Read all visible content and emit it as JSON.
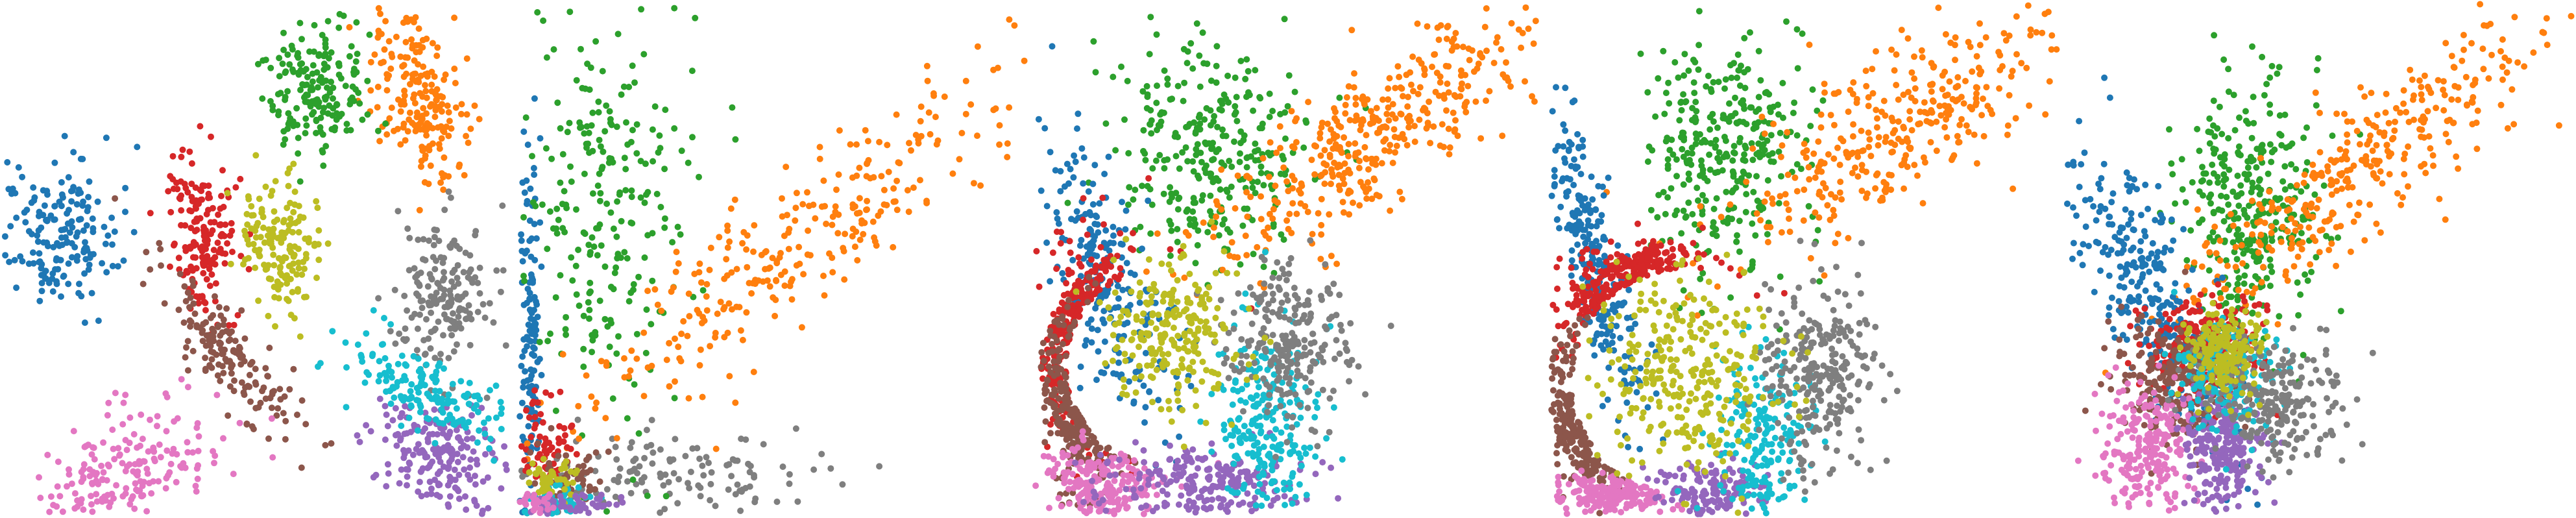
{
  "chart_data": [
    {
      "type": "scatter",
      "axes": "hidden",
      "grid": false,
      "legend": "none",
      "palette": [
        "#1f77b4",
        "#ff7f0e",
        "#2ca02c",
        "#d62728",
        "#9467bd",
        "#8c564b",
        "#e377c2",
        "#7f7f7f",
        "#bcbd22",
        "#17becf"
      ],
      "xlim": [
        0,
        1
      ],
      "ylim": [
        0,
        1
      ],
      "clusters": [
        {
          "color": "#1f77b4",
          "count": 180,
          "center": [
            0.1,
            0.55
          ],
          "spread": [
            0.06,
            0.07
          ],
          "angle": 0
        },
        {
          "color": "#ff7f0e",
          "count": 200,
          "center": [
            0.82,
            0.82
          ],
          "spread": [
            0.045,
            0.09
          ],
          "angle": 20
        },
        {
          "color": "#2ca02c",
          "count": 180,
          "center": [
            0.61,
            0.84
          ],
          "spread": [
            0.05,
            0.06
          ],
          "angle": 10
        },
        {
          "color": "#d62728",
          "count": 170,
          "center": [
            0.39,
            0.54
          ],
          "spread": [
            0.035,
            0.08
          ],
          "angle": 5
        },
        {
          "color": "#9467bd",
          "count": 200,
          "center": [
            0.86,
            0.11
          ],
          "spread": [
            0.07,
            0.05
          ],
          "angle": -30
        },
        {
          "color": "#8c564b",
          "count": 160,
          "center": [
            0.44,
            0.31
          ],
          "spread": [
            0.03,
            0.11
          ],
          "angle": 40
        },
        {
          "color": "#e377c2",
          "count": 200,
          "center": [
            0.25,
            0.08
          ],
          "spread": [
            0.09,
            0.055
          ],
          "angle": 25
        },
        {
          "color": "#7f7f7f",
          "count": 180,
          "center": [
            0.86,
            0.42
          ],
          "spread": [
            0.05,
            0.08
          ],
          "angle": -15
        },
        {
          "color": "#bcbd22",
          "count": 160,
          "center": [
            0.54,
            0.53
          ],
          "spread": [
            0.04,
            0.065
          ],
          "angle": 10
        },
        {
          "color": "#17becf",
          "count": 170,
          "center": [
            0.84,
            0.23
          ],
          "spread": [
            0.09,
            0.035
          ],
          "angle": -25
        }
      ]
    },
    {
      "type": "scatter",
      "axes": "hidden",
      "grid": false,
      "legend": "none",
      "xlim": [
        0,
        1
      ],
      "ylim": [
        0,
        1
      ],
      "clusters": [
        {
          "color": "#7f7f7f",
          "count": 150,
          "center": [
            0.28,
            0.07
          ],
          "spread": [
            0.17,
            0.045
          ],
          "angle": 0
        },
        {
          "color": "#1f77b4",
          "count": 160,
          "center": [
            0.02,
            0.33
          ],
          "spread": [
            0.012,
            0.22
          ],
          "angle": 0
        },
        {
          "color": "#2ca02c",
          "count": 250,
          "center": [
            0.17,
            0.58
          ],
          "spread": [
            0.09,
            0.22
          ],
          "angle": 0
        },
        {
          "color": "#ff7f0e",
          "count": 300,
          "center": [
            0.56,
            0.54
          ],
          "spread": [
            0.06,
            0.3
          ],
          "angle": -52
        },
        {
          "color": "#d62728",
          "count": 70,
          "center": [
            0.05,
            0.14
          ],
          "spread": [
            0.03,
            0.05
          ],
          "angle": 0
        },
        {
          "color": "#8c564b",
          "count": 50,
          "center": [
            0.09,
            0.08
          ],
          "spread": [
            0.035,
            0.025
          ],
          "angle": 0
        },
        {
          "color": "#17becf",
          "count": 60,
          "center": [
            0.06,
            0.03
          ],
          "spread": [
            0.04,
            0.015
          ],
          "angle": 0
        },
        {
          "color": "#bcbd22",
          "count": 50,
          "center": [
            0.06,
            0.07
          ],
          "spread": [
            0.025,
            0.02
          ],
          "angle": 0
        },
        {
          "color": "#9467bd",
          "count": 50,
          "center": [
            0.12,
            0.02
          ],
          "spread": [
            0.05,
            0.012
          ],
          "angle": 0
        },
        {
          "color": "#e377c2",
          "count": 30,
          "center": [
            0.03,
            0.02
          ],
          "spread": [
            0.02,
            0.012
          ],
          "angle": 0
        }
      ]
    },
    {
      "type": "scatter",
      "axes": "hidden",
      "grid": false,
      "legend": "none",
      "xlim": [
        0,
        1
      ],
      "ylim": [
        0,
        1
      ],
      "ring": {
        "center": [
          0.25,
          0.29
        ],
        "radius": [
          0.19,
          0.23
        ]
      },
      "clusters": [
        {
          "color": "#2ca02c",
          "count": 300,
          "center": [
            0.35,
            0.72
          ],
          "spread": [
            0.1,
            0.11
          ],
          "angle": 0
        },
        {
          "color": "#ff7f0e",
          "count": 400,
          "center": [
            0.66,
            0.74
          ],
          "spread": [
            0.06,
            0.2
          ],
          "angle": -55
        },
        {
          "color": "#1f77b4",
          "count": 230,
          "center": [
            0.14,
            0.46
          ],
          "spread": [
            0.04,
            0.15
          ],
          "angle": 20
        },
        {
          "color": "#d62728",
          "count": 260,
          "center": [
            0.12,
            0.35
          ],
          "spread": [
            0.05,
            0.1
          ],
          "angle": 0
        },
        {
          "color": "#8c564b",
          "count": 230,
          "center": [
            0.1,
            0.2
          ],
          "spread": [
            0.04,
            0.08
          ],
          "angle": 0
        },
        {
          "color": "#e377c2",
          "count": 220,
          "center": [
            0.13,
            0.06
          ],
          "spread": [
            0.06,
            0.04
          ],
          "angle": 0
        },
        {
          "color": "#9467bd",
          "count": 230,
          "center": [
            0.33,
            0.06
          ],
          "spread": [
            0.1,
            0.04
          ],
          "angle": 0
        },
        {
          "color": "#17becf",
          "count": 230,
          "center": [
            0.46,
            0.17
          ],
          "spread": [
            0.05,
            0.1
          ],
          "angle": 0
        },
        {
          "color": "#7f7f7f",
          "count": 230,
          "center": [
            0.5,
            0.34
          ],
          "spread": [
            0.06,
            0.08
          ],
          "angle": 0
        },
        {
          "color": "#bcbd22",
          "count": 230,
          "center": [
            0.27,
            0.34
          ],
          "spread": [
            0.07,
            0.08
          ],
          "angle": 0
        }
      ]
    },
    {
      "type": "scatter",
      "axes": "hidden",
      "grid": false,
      "legend": "none",
      "xlim": [
        0,
        1
      ],
      "ylim": [
        0,
        1
      ],
      "ring": {
        "center": [
          0.26,
          0.26
        ],
        "radius": [
          0.22,
          0.24
        ]
      },
      "clusters": [
        {
          "color": "#2ca02c",
          "count": 320,
          "center": [
            0.34,
            0.7
          ],
          "spread": [
            0.08,
            0.12
          ],
          "angle": 0
        },
        {
          "color": "#ff7f0e",
          "count": 350,
          "center": [
            0.68,
            0.76
          ],
          "spread": [
            0.07,
            0.2
          ],
          "angle": -55
        },
        {
          "color": "#1f77b4",
          "count": 260,
          "center": [
            0.08,
            0.5
          ],
          "spread": [
            0.03,
            0.17
          ],
          "angle": 15
        },
        {
          "color": "#d62728",
          "count": 260,
          "center": [
            0.17,
            0.42
          ],
          "spread": [
            0.07,
            0.06
          ],
          "angle": 0
        },
        {
          "color": "#8c564b",
          "count": 230,
          "center": [
            0.09,
            0.18
          ],
          "spread": [
            0.04,
            0.08
          ],
          "angle": 0
        },
        {
          "color": "#e377c2",
          "count": 200,
          "center": [
            0.12,
            0.04
          ],
          "spread": [
            0.06,
            0.02
          ],
          "angle": 0
        },
        {
          "color": "#9467bd",
          "count": 160,
          "center": [
            0.31,
            0.04
          ],
          "spread": [
            0.06,
            0.03
          ],
          "angle": 0
        },
        {
          "color": "#17becf",
          "count": 200,
          "center": [
            0.42,
            0.14
          ],
          "spread": [
            0.05,
            0.09
          ],
          "angle": 0
        },
        {
          "color": "#7f7f7f",
          "count": 260,
          "center": [
            0.53,
            0.27
          ],
          "spread": [
            0.06,
            0.09
          ],
          "angle": 0
        },
        {
          "color": "#bcbd22",
          "count": 300,
          "center": [
            0.27,
            0.28
          ],
          "spread": [
            0.09,
            0.1
          ],
          "angle": 0
        }
      ]
    },
    {
      "type": "scatter",
      "axes": "hidden",
      "grid": false,
      "legend": "none",
      "xlim": [
        0,
        1
      ],
      "ylim": [
        0,
        1
      ],
      "clusters": [
        {
          "color": "#2ca02c",
          "count": 330,
          "center": [
            0.37,
            0.6
          ],
          "spread": [
            0.07,
            0.13
          ],
          "angle": 0
        },
        {
          "color": "#ff7f0e",
          "count": 350,
          "center": [
            0.58,
            0.68
          ],
          "spread": [
            0.06,
            0.24
          ],
          "angle": -52
        },
        {
          "color": "#1f77b4",
          "count": 280,
          "center": [
            0.16,
            0.45
          ],
          "spread": [
            0.05,
            0.16
          ],
          "angle": 25
        },
        {
          "color": "#d62728",
          "count": 220,
          "center": [
            0.27,
            0.33
          ],
          "spread": [
            0.06,
            0.05
          ],
          "angle": 0
        },
        {
          "color": "#8c564b",
          "count": 220,
          "center": [
            0.21,
            0.26
          ],
          "spread": [
            0.06,
            0.06
          ],
          "angle": 0
        },
        {
          "color": "#e377c2",
          "count": 230,
          "center": [
            0.16,
            0.12
          ],
          "spread": [
            0.05,
            0.06
          ],
          "angle": 0
        },
        {
          "color": "#9467bd",
          "count": 230,
          "center": [
            0.31,
            0.13
          ],
          "spread": [
            0.04,
            0.06
          ],
          "angle": 0
        },
        {
          "color": "#17becf",
          "count": 170,
          "center": [
            0.31,
            0.27
          ],
          "spread": [
            0.05,
            0.05
          ],
          "angle": 0
        },
        {
          "color": "#7f7f7f",
          "count": 240,
          "center": [
            0.41,
            0.22
          ],
          "spread": [
            0.07,
            0.06
          ],
          "angle": 0
        },
        {
          "color": "#bcbd22",
          "count": 180,
          "center": [
            0.31,
            0.32
          ],
          "spread": [
            0.04,
            0.04
          ],
          "angle": 0
        }
      ]
    }
  ]
}
